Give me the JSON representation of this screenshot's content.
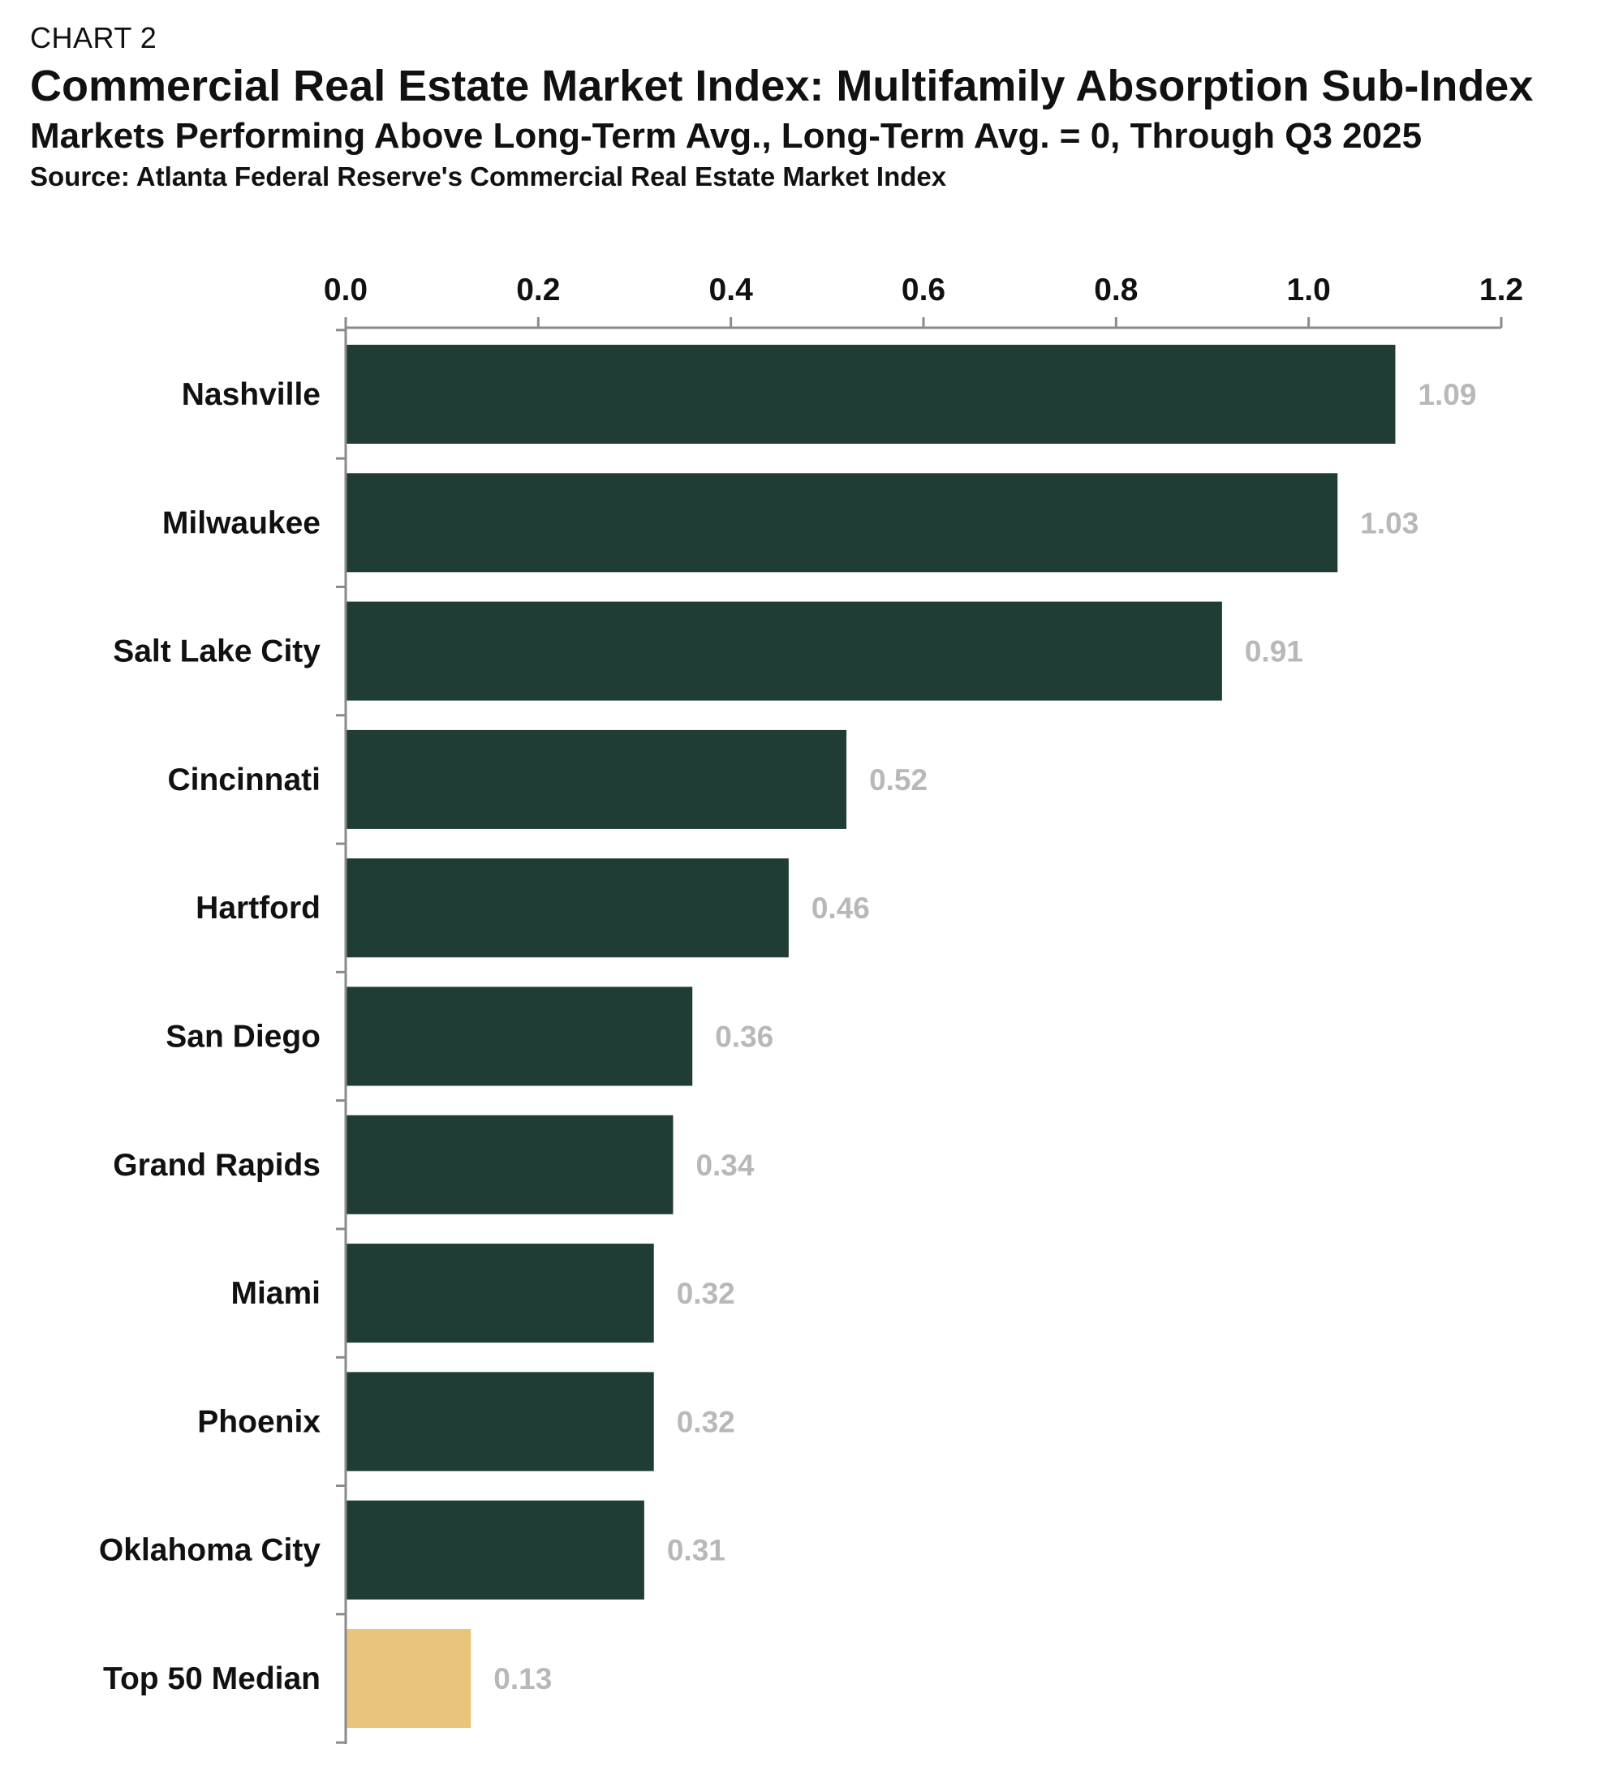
{
  "header": {
    "chart_number": "CHART 2",
    "title": "Commercial Real Estate Market Index: Multifamily Absorption Sub-Index",
    "subtitle": "Markets Performing Above Long-Term Avg., Long-Term Avg. = 0, Through Q3 2025",
    "source": "Source: Atlanta Federal Reserve's Commercial Real Estate Market Index"
  },
  "colors": {
    "bar": "#1f3d34",
    "highlight_bar": "#e8c47c",
    "axis": "#8a8a8a",
    "data_label": "#b8b8b8"
  },
  "chart_data": {
    "type": "bar",
    "orientation": "horizontal",
    "title": "Commercial Real Estate Market Index: Multifamily Absorption Sub-Index",
    "subtitle": "Markets Performing Above Long-Term Avg., Long-Term Avg. = 0, Through Q3 2025",
    "xlabel": "",
    "ylabel": "",
    "xlim": [
      0,
      1.2
    ],
    "ticks": [
      "0.0",
      "0.2",
      "0.4",
      "0.6",
      "0.8",
      "1.0",
      "1.2"
    ],
    "tick_values": [
      0,
      0.2,
      0.4,
      0.6,
      0.8,
      1.0,
      1.2
    ],
    "axis_position": "top",
    "grid": false,
    "categories": [
      "Nashville",
      "Milwaukee",
      "Salt Lake City",
      "Cincinnati",
      "Hartford",
      "San Diego",
      "Grand Rapids",
      "Miami",
      "Phoenix",
      "Oklahoma City",
      "Top 50 Median"
    ],
    "values": [
      1.09,
      1.03,
      0.91,
      0.52,
      0.46,
      0.36,
      0.34,
      0.32,
      0.32,
      0.31,
      0.13
    ],
    "value_labels": [
      "1.09",
      "1.03",
      "0.91",
      "0.52",
      "0.46",
      "0.36",
      "0.34",
      "0.32",
      "0.32",
      "0.31",
      "0.13"
    ],
    "highlight": [
      false,
      false,
      false,
      false,
      false,
      false,
      false,
      false,
      false,
      false,
      true
    ]
  }
}
